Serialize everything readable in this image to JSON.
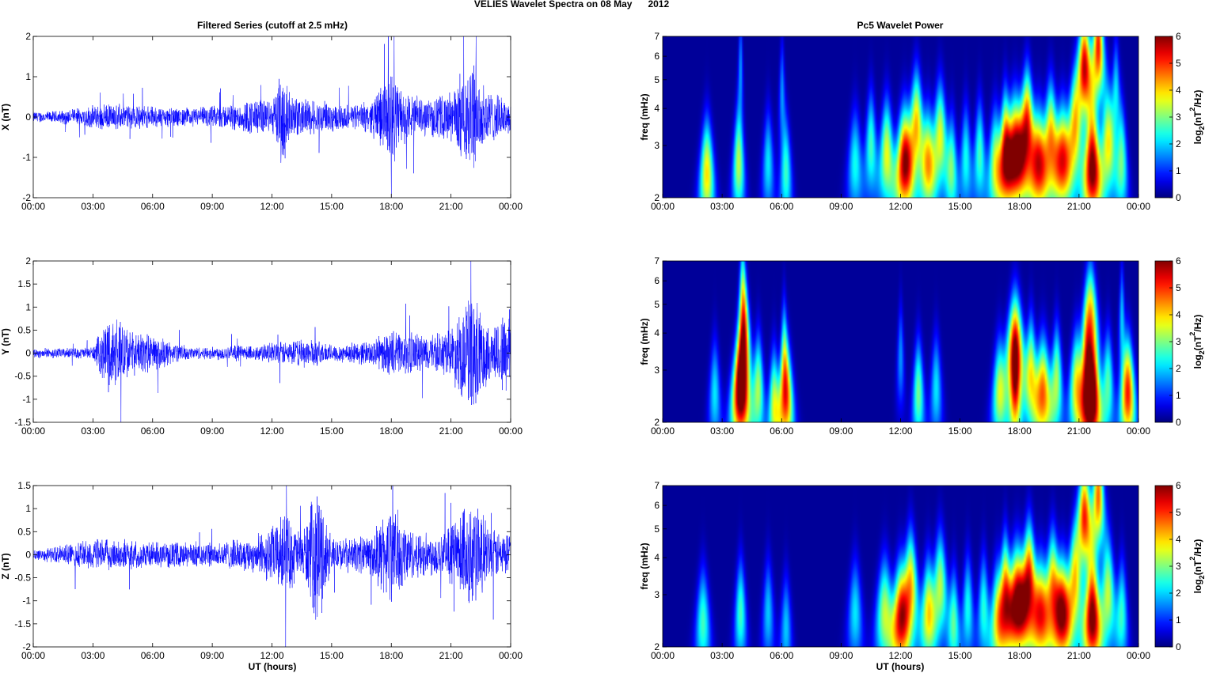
{
  "figure": {
    "suptitle": "VELIES Wavelet Spectra on 08 May      2012",
    "left_title": "Filtered Series (cutoff at 2.5 mHz)",
    "right_title": "Pc5 Wavelet Power",
    "xlabel": "UT (hours)",
    "freq_label": "freq (mHz)",
    "colorbar_label": "log2(nT^2/Hz)",
    "colorbar_label_base": "log",
    "colorbar_label_sub": "2",
    "colorbar_label_mid": "(nT",
    "colorbar_label_sup": "2",
    "colorbar_label_end": "/Hz)",
    "line_color": "#0000ff"
  },
  "chart_data": [
    {
      "type": "line",
      "ylabel": "X (nT)",
      "xlim": [
        0,
        24
      ],
      "ylim": [
        -2,
        2
      ],
      "xticks": [
        "00:00",
        "03:00",
        "06:00",
        "09:00",
        "12:00",
        "15:00",
        "18:00",
        "21:00",
        "00:00"
      ],
      "yticks": [
        "2",
        "1",
        "0",
        "-1",
        "-2"
      ],
      "series": [
        {
          "x_hours_range": [
            0,
            24
          ],
          "envelope": [
            [
              0,
              0.15
            ],
            [
              1,
              0.16
            ],
            [
              2,
              0.22
            ],
            [
              3,
              0.32
            ],
            [
              4,
              0.35
            ],
            [
              5,
              0.32
            ],
            [
              6,
              0.3
            ],
            [
              7,
              0.25
            ],
            [
              8,
              0.25
            ],
            [
              9,
              0.3
            ],
            [
              10,
              0.35
            ],
            [
              11,
              0.5
            ],
            [
              12,
              0.45
            ],
            [
              12.6,
              1.4
            ],
            [
              13,
              0.55
            ],
            [
              14,
              0.5
            ],
            [
              15,
              0.4
            ],
            [
              16,
              0.3
            ],
            [
              17,
              0.45
            ],
            [
              18,
              1.4
            ],
            [
              18.5,
              0.8
            ],
            [
              19,
              0.6
            ],
            [
              20,
              0.5
            ],
            [
              21,
              0.7
            ],
            [
              22,
              1.6
            ],
            [
              23,
              0.7
            ],
            [
              24,
              0.4
            ]
          ]
        }
      ]
    },
    {
      "type": "line",
      "ylabel": "Y (nT)",
      "xlim": [
        0,
        24
      ],
      "ylim": [
        -1.5,
        2
      ],
      "xticks": [
        "00:00",
        "03:00",
        "06:00",
        "09:00",
        "12:00",
        "15:00",
        "18:00",
        "21:00",
        "00:00"
      ],
      "yticks": [
        "2",
        "1.5",
        "1",
        "0.5",
        "0",
        "-0.5",
        "-1",
        "-1.5"
      ],
      "series": [
        {
          "x_hours_range": [
            0,
            24
          ],
          "envelope": [
            [
              0,
              0.12
            ],
            [
              1,
              0.12
            ],
            [
              2,
              0.12
            ],
            [
              3,
              0.15
            ],
            [
              3.8,
              0.9
            ],
            [
              4.5,
              0.8
            ],
            [
              5,
              0.5
            ],
            [
              6,
              0.45
            ],
            [
              7,
              0.25
            ],
            [
              8,
              0.15
            ],
            [
              9,
              0.15
            ],
            [
              10,
              0.2
            ],
            [
              11,
              0.18
            ],
            [
              12,
              0.25
            ],
            [
              13,
              0.3
            ],
            [
              14,
              0.35
            ],
            [
              15,
              0.2
            ],
            [
              16,
              0.25
            ],
            [
              17,
              0.3
            ],
            [
              18,
              0.55
            ],
            [
              19,
              0.5
            ],
            [
              20,
              0.45
            ],
            [
              21,
              0.6
            ],
            [
              22,
              1.5
            ],
            [
              23,
              0.6
            ],
            [
              24,
              1.2
            ]
          ]
        }
      ]
    },
    {
      "type": "line",
      "ylabel": "Z (nT)",
      "xlim": [
        0,
        24
      ],
      "ylim": [
        -2,
        1.5
      ],
      "xticks": [
        "00:00",
        "03:00",
        "06:00",
        "09:00",
        "12:00",
        "15:00",
        "18:00",
        "21:00",
        "00:00"
      ],
      "yticks": [
        "1.5",
        "1",
        "0.5",
        "0",
        "-0.5",
        "-1",
        "-1.5",
        "-2"
      ],
      "series": [
        {
          "x_hours_range": [
            0,
            24
          ],
          "envelope": [
            [
              0,
              0.15
            ],
            [
              1,
              0.18
            ],
            [
              2,
              0.3
            ],
            [
              3,
              0.4
            ],
            [
              4,
              0.35
            ],
            [
              5,
              0.35
            ],
            [
              6,
              0.3
            ],
            [
              7,
              0.3
            ],
            [
              8,
              0.3
            ],
            [
              9,
              0.3
            ],
            [
              10,
              0.35
            ],
            [
              11,
              0.4
            ],
            [
              12,
              0.7
            ],
            [
              12.7,
              1.0
            ],
            [
              13.5,
              0.5
            ],
            [
              14.3,
              1.7
            ],
            [
              15,
              0.4
            ],
            [
              16,
              0.4
            ],
            [
              17,
              0.5
            ],
            [
              18,
              1.25
            ],
            [
              19,
              0.6
            ],
            [
              20,
              0.5
            ],
            [
              21,
              0.7
            ],
            [
              22,
              1.5
            ],
            [
              23,
              0.6
            ],
            [
              24,
              0.5
            ]
          ]
        }
      ]
    },
    {
      "type": "heatmap",
      "ylabel": "freq (mHz)",
      "xlim": [
        0,
        24
      ],
      "ylim": [
        2,
        7
      ],
      "yscale": "log",
      "clim": [
        0,
        6
      ],
      "colormap": "jet",
      "xticks": [
        "00:00",
        "03:00",
        "06:00",
        "09:00",
        "12:00",
        "15:00",
        "18:00",
        "21:00",
        "00:00"
      ],
      "yticks": [
        "7",
        "6",
        "5",
        "4",
        "3",
        "2"
      ],
      "colorbar_ticks": [
        "6",
        "5",
        "4",
        "3",
        "2",
        "1",
        "0"
      ],
      "blobs": [
        [
          2.2,
          2.4,
          0.25,
          3.8
        ],
        [
          3.8,
          2.6,
          0.2,
          3.2
        ],
        [
          5.3,
          2.6,
          0.2,
          2.0
        ],
        [
          6.2,
          2.4,
          0.2,
          2.4
        ],
        [
          6.0,
          4.5,
          0.1,
          1.5
        ],
        [
          3.9,
          5.5,
          0.08,
          1.5
        ],
        [
          9.7,
          2.6,
          0.25,
          2.2
        ],
        [
          10.5,
          3.0,
          0.2,
          2.5
        ],
        [
          11.3,
          2.8,
          0.25,
          3.5
        ],
        [
          12.2,
          2.6,
          0.3,
          5.5
        ],
        [
          12.8,
          3.5,
          0.25,
          4.0
        ],
        [
          13.4,
          2.6,
          0.25,
          3.5
        ],
        [
          14.0,
          3.2,
          0.25,
          3.5
        ],
        [
          14.6,
          2.5,
          0.2,
          2.5
        ],
        [
          15.3,
          2.7,
          0.2,
          2.2
        ],
        [
          16.0,
          2.8,
          0.2,
          2.5
        ],
        [
          16.8,
          2.6,
          0.25,
          3.2
        ],
        [
          17.3,
          3.0,
          0.2,
          4.0
        ],
        [
          17.8,
          2.8,
          0.35,
          6.0
        ],
        [
          18.4,
          3.5,
          0.25,
          5.0
        ],
        [
          19.0,
          2.6,
          0.3,
          4.5
        ],
        [
          19.6,
          3.2,
          0.25,
          4.0
        ],
        [
          20.2,
          2.7,
          0.3,
          4.5
        ],
        [
          20.8,
          3.3,
          0.25,
          3.5
        ],
        [
          21.7,
          2.5,
          0.3,
          6.0
        ],
        [
          21.3,
          5.5,
          0.25,
          5.5
        ],
        [
          22.0,
          6.5,
          0.2,
          5.0
        ],
        [
          22.5,
          3.0,
          0.25,
          3.5
        ],
        [
          23.2,
          2.6,
          0.2,
          2.5
        ],
        [
          22.9,
          4.5,
          0.15,
          2.0
        ]
      ]
    },
    {
      "type": "heatmap",
      "ylabel": "freq (mHz)",
      "xlim": [
        0,
        24
      ],
      "ylim": [
        2,
        7
      ],
      "yscale": "log",
      "clim": [
        0,
        6
      ],
      "colormap": "jet",
      "xticks": [
        "00:00",
        "03:00",
        "06:00",
        "09:00",
        "12:00",
        "15:00",
        "18:00",
        "21:00",
        "00:00"
      ],
      "yticks": [
        "7",
        "6",
        "5",
        "4",
        "3",
        "2"
      ],
      "colorbar_ticks": [
        "6",
        "5",
        "4",
        "3",
        "2",
        "1",
        "0"
      ],
      "blobs": [
        [
          2.6,
          2.5,
          0.2,
          2.0
        ],
        [
          3.9,
          2.5,
          0.3,
          6.0
        ],
        [
          4.1,
          3.8,
          0.2,
          4.0
        ],
        [
          4.0,
          5.5,
          0.12,
          2.5
        ],
        [
          4.8,
          2.6,
          0.2,
          3.0
        ],
        [
          5.6,
          2.3,
          0.2,
          3.2
        ],
        [
          6.2,
          2.4,
          0.25,
          4.5
        ],
        [
          6.1,
          3.5,
          0.12,
          2.0
        ],
        [
          12.0,
          3.3,
          0.12,
          1.5
        ],
        [
          12.9,
          2.5,
          0.2,
          2.8
        ],
        [
          13.8,
          2.6,
          0.2,
          2.0
        ],
        [
          17.0,
          2.5,
          0.25,
          3.0
        ],
        [
          17.8,
          3.5,
          0.3,
          5.5
        ],
        [
          17.8,
          2.3,
          0.2,
          3.0
        ],
        [
          18.6,
          3.0,
          0.2,
          3.2
        ],
        [
          19.2,
          2.5,
          0.3,
          4.5
        ],
        [
          19.9,
          2.8,
          0.2,
          3.0
        ],
        [
          20.9,
          2.6,
          0.25,
          3.5
        ],
        [
          21.4,
          2.9,
          0.2,
          3.0
        ],
        [
          21.7,
          2.4,
          0.3,
          6.0
        ],
        [
          21.6,
          4.5,
          0.25,
          4.0
        ],
        [
          22.5,
          2.7,
          0.2,
          2.5
        ],
        [
          23.5,
          2.5,
          0.25,
          5.0
        ],
        [
          23.2,
          4.5,
          0.1,
          1.8
        ]
      ]
    },
    {
      "type": "heatmap",
      "ylabel": "freq (mHz)",
      "xlim": [
        0,
        24
      ],
      "ylim": [
        2,
        7
      ],
      "yscale": "log",
      "clim": [
        0,
        6
      ],
      "colormap": "jet",
      "xticks": [
        "00:00",
        "03:00",
        "06:00",
        "09:00",
        "12:00",
        "15:00",
        "18:00",
        "21:00",
        "00:00"
      ],
      "yticks": [
        "7",
        "6",
        "5",
        "4",
        "3",
        "2"
      ],
      "colorbar_ticks": [
        "6",
        "5",
        "4",
        "3",
        "2",
        "1",
        "0"
      ],
      "blobs": [
        [
          2.0,
          2.4,
          0.25,
          2.5
        ],
        [
          3.9,
          2.6,
          0.2,
          2.5
        ],
        [
          5.3,
          2.6,
          0.2,
          1.8
        ],
        [
          6.2,
          2.3,
          0.2,
          1.8
        ],
        [
          9.7,
          2.6,
          0.25,
          2.0
        ],
        [
          11.2,
          2.6,
          0.3,
          3.2
        ],
        [
          12.0,
          2.5,
          0.3,
          4.8
        ],
        [
          12.5,
          3.2,
          0.25,
          4.0
        ],
        [
          13.4,
          2.6,
          0.25,
          3.5
        ],
        [
          14.0,
          3.2,
          0.25,
          3.2
        ],
        [
          14.7,
          2.4,
          0.2,
          2.5
        ],
        [
          15.4,
          2.7,
          0.2,
          2.2
        ],
        [
          16.2,
          2.7,
          0.2,
          2.3
        ],
        [
          16.9,
          2.5,
          0.25,
          3.2
        ],
        [
          17.3,
          3.1,
          0.2,
          4.0
        ],
        [
          17.9,
          2.8,
          0.35,
          6.0
        ],
        [
          18.5,
          3.4,
          0.25,
          5.0
        ],
        [
          19.1,
          2.6,
          0.3,
          4.2
        ],
        [
          19.7,
          3.2,
          0.25,
          4.0
        ],
        [
          20.2,
          2.6,
          0.3,
          5.0
        ],
        [
          20.8,
          3.2,
          0.25,
          3.5
        ],
        [
          21.7,
          2.5,
          0.3,
          6.0
        ],
        [
          21.3,
          5.5,
          0.25,
          5.0
        ],
        [
          22.0,
          6.5,
          0.2,
          4.5
        ],
        [
          22.5,
          3.0,
          0.25,
          3.2
        ],
        [
          23.2,
          2.6,
          0.2,
          2.3
        ]
      ]
    }
  ]
}
